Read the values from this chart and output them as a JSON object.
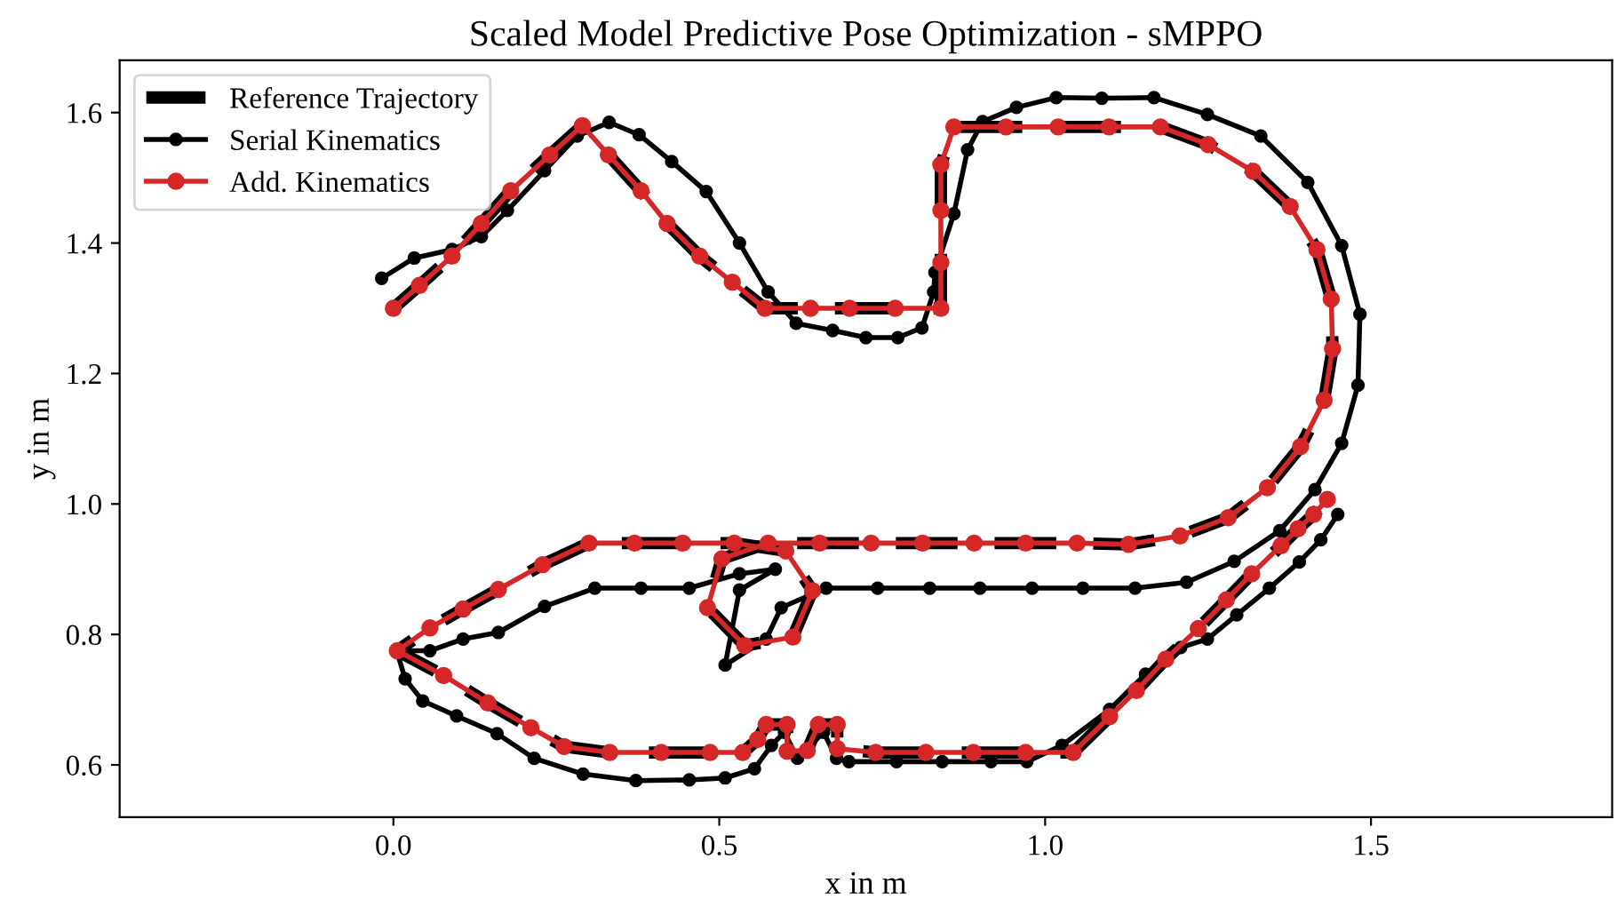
{
  "chart_data": {
    "type": "line",
    "title": "Scaled Model Predictive Pose Optimization - sMPPO",
    "xlabel": "x in m",
    "ylabel": "y in m",
    "xlim": [
      -0.42,
      1.87
    ],
    "ylim": [
      0.52,
      1.68
    ],
    "xticks": [
      {
        "value": 0,
        "label": "0.0"
      },
      0.5,
      {
        "value": 1,
        "label": "1.0"
      },
      1.5
    ],
    "yticks": [
      0.6,
      0.8,
      {
        "value": 1,
        "label": "1.0"
      },
      1.2,
      1.4,
      1.6
    ],
    "grid": false,
    "legend": "top left",
    "series": [
      {
        "name": "Reference Trajectory",
        "color": "#000000",
        "line_style": "dashed",
        "marker": "none",
        "x": [
          0,
          0.04,
          0.09,
          0.135,
          0.18,
          0.24,
          0.29,
          0.33,
          0.38,
          0.42,
          0.47,
          0.52,
          0.57,
          0.64,
          0.7,
          0.77,
          0.84,
          0.84,
          0.84,
          0.84,
          0.86,
          0.94,
          1.02,
          1.098,
          1.177,
          1.25,
          1.319,
          1.376,
          1.417,
          1.439,
          1.441,
          1.428,
          1.392,
          1.341,
          1.281,
          1.207,
          1.128,
          1.049,
          0.97,
          0.891,
          0.812,
          0.733,
          0.654,
          0.575,
          0.504,
          0.482,
          0.539,
          0.613,
          0.643,
          0.602,
          0.523,
          0.444,
          0.37,
          0.3,
          0.229,
          0.161,
          0.107,
          0.056,
          0.006,
          0.077,
          0.145,
          0.211,
          0.262,
          0.332,
          0.411,
          0.486,
          0.536,
          0.559,
          0.572,
          0.604,
          0.604,
          0.635,
          0.652,
          0.681,
          0.681,
          0.74,
          0.817,
          0.89,
          0.97,
          1.043,
          1.099,
          1.14,
          1.185,
          1.235,
          1.278,
          1.317,
          1.362,
          1.388,
          1.412,
          1.433
        ],
        "values": [
          1.3,
          1.335,
          1.38,
          1.43,
          1.48,
          1.535,
          1.58,
          1.535,
          1.48,
          1.43,
          1.38,
          1.34,
          1.3,
          1.3,
          1.3,
          1.3,
          1.3,
          1.37,
          1.45,
          1.52,
          1.578,
          1.578,
          1.578,
          1.578,
          1.578,
          1.551,
          1.51,
          1.456,
          1.39,
          1.314,
          1.238,
          1.159,
          1.088,
          1.025,
          0.979,
          0.951,
          0.938,
          0.94,
          0.94,
          0.94,
          0.94,
          0.94,
          0.94,
          0.94,
          0.916,
          0.841,
          0.783,
          0.796,
          0.867,
          0.928,
          0.94,
          0.94,
          0.94,
          0.94,
          0.907,
          0.869,
          0.839,
          0.81,
          0.775,
          0.737,
          0.695,
          0.657,
          0.628,
          0.619,
          0.619,
          0.619,
          0.619,
          0.639,
          0.662,
          0.662,
          0.621,
          0.622,
          0.662,
          0.662,
          0.625,
          0.619,
          0.619,
          0.619,
          0.619,
          0.619,
          0.674,
          0.714,
          0.762,
          0.809,
          0.853,
          0.893,
          0.936,
          0.962,
          0.984,
          1.007
        ]
      },
      {
        "name": "Serial Kinematics",
        "color": "#000000",
        "line_style": "solid",
        "marker": "circle",
        "x": [
          -0.018,
          0.032,
          0.09,
          0.135,
          0.175,
          0.232,
          0.282,
          0.331,
          0.377,
          0.427,
          0.48,
          0.531,
          0.575,
          0.618,
          0.674,
          0.725,
          0.774,
          0.811,
          0.829,
          0.831,
          0.86,
          0.881,
          0.904,
          0.956,
          1.017,
          1.087,
          1.167,
          1.249,
          1.331,
          1.403,
          1.455,
          1.483,
          1.48,
          1.455,
          1.414,
          1.36,
          1.29,
          1.217,
          1.138,
          1.058,
          0.98,
          0.9,
          0.823,
          0.743,
          0.664,
          0.595,
          0.572,
          0.509,
          0.531,
          0.586,
          0.531,
          0.454,
          0.38,
          0.309,
          0.232,
          0.161,
          0.107,
          0.056,
          0.005,
          0.018,
          0.045,
          0.097,
          0.159,
          0.216,
          0.291,
          0.372,
          0.454,
          0.509,
          0.554,
          0.58,
          0.6,
          0.62,
          0.66,
          0.68,
          0.699,
          0.772,
          0.842,
          0.917,
          0.972,
          1.026,
          1.099,
          1.154,
          1.208,
          1.249,
          1.294,
          1.344,
          1.39,
          1.423,
          1.449
        ],
        "values": [
          1.346,
          1.377,
          1.39,
          1.41,
          1.45,
          1.511,
          1.564,
          1.585,
          1.566,
          1.525,
          1.479,
          1.4,
          1.325,
          1.277,
          1.266,
          1.255,
          1.255,
          1.27,
          1.325,
          1.355,
          1.445,
          1.543,
          1.586,
          1.608,
          1.623,
          1.622,
          1.623,
          1.597,
          1.564,
          1.493,
          1.396,
          1.291,
          1.182,
          1.093,
          1.022,
          0.959,
          0.912,
          0.88,
          0.871,
          0.871,
          0.871,
          0.871,
          0.871,
          0.871,
          0.871,
          0.841,
          0.793,
          0.753,
          0.868,
          0.9,
          0.893,
          0.871,
          0.871,
          0.871,
          0.843,
          0.803,
          0.793,
          0.775,
          0.775,
          0.732,
          0.698,
          0.675,
          0.648,
          0.61,
          0.586,
          0.576,
          0.577,
          0.58,
          0.594,
          0.63,
          0.65,
          0.61,
          0.65,
          0.61,
          0.605,
          0.605,
          0.605,
          0.605,
          0.605,
          0.63,
          0.685,
          0.739,
          0.78,
          0.793,
          0.83,
          0.871,
          0.911,
          0.945,
          0.984
        ]
      },
      {
        "name": "Add. Kinematics",
        "color": "#d62728",
        "line_style": "solid",
        "marker": "circle",
        "x": [
          0,
          0.04,
          0.09,
          0.135,
          0.18,
          0.24,
          0.29,
          0.33,
          0.38,
          0.42,
          0.47,
          0.52,
          0.57,
          0.64,
          0.7,
          0.77,
          0.84,
          0.84,
          0.84,
          0.84,
          0.86,
          0.94,
          1.02,
          1.098,
          1.177,
          1.25,
          1.319,
          1.376,
          1.417,
          1.439,
          1.441,
          1.428,
          1.392,
          1.341,
          1.281,
          1.207,
          1.128,
          1.049,
          0.97,
          0.891,
          0.812,
          0.733,
          0.654,
          0.575,
          0.504,
          0.482,
          0.539,
          0.613,
          0.643,
          0.602,
          0.523,
          0.444,
          0.37,
          0.3,
          0.229,
          0.161,
          0.107,
          0.056,
          0.006,
          0.077,
          0.145,
          0.211,
          0.262,
          0.332,
          0.411,
          0.486,
          0.536,
          0.559,
          0.572,
          0.604,
          0.604,
          0.635,
          0.652,
          0.681,
          0.681,
          0.74,
          0.817,
          0.89,
          0.97,
          1.043,
          1.099,
          1.14,
          1.185,
          1.235,
          1.278,
          1.317,
          1.362,
          1.388,
          1.412,
          1.433
        ],
        "values": [
          1.3,
          1.335,
          1.38,
          1.43,
          1.48,
          1.535,
          1.58,
          1.535,
          1.48,
          1.43,
          1.38,
          1.34,
          1.3,
          1.3,
          1.3,
          1.3,
          1.3,
          1.37,
          1.45,
          1.52,
          1.578,
          1.578,
          1.578,
          1.578,
          1.578,
          1.551,
          1.51,
          1.456,
          1.39,
          1.314,
          1.238,
          1.159,
          1.088,
          1.025,
          0.979,
          0.951,
          0.938,
          0.94,
          0.94,
          0.94,
          0.94,
          0.94,
          0.94,
          0.94,
          0.916,
          0.841,
          0.783,
          0.796,
          0.867,
          0.928,
          0.94,
          0.94,
          0.94,
          0.94,
          0.907,
          0.869,
          0.839,
          0.81,
          0.775,
          0.737,
          0.695,
          0.657,
          0.628,
          0.619,
          0.619,
          0.619,
          0.619,
          0.639,
          0.662,
          0.662,
          0.621,
          0.622,
          0.662,
          0.662,
          0.625,
          0.619,
          0.619,
          0.619,
          0.619,
          0.619,
          0.674,
          0.714,
          0.762,
          0.809,
          0.853,
          0.893,
          0.936,
          0.962,
          0.984,
          1.007
        ]
      }
    ]
  }
}
